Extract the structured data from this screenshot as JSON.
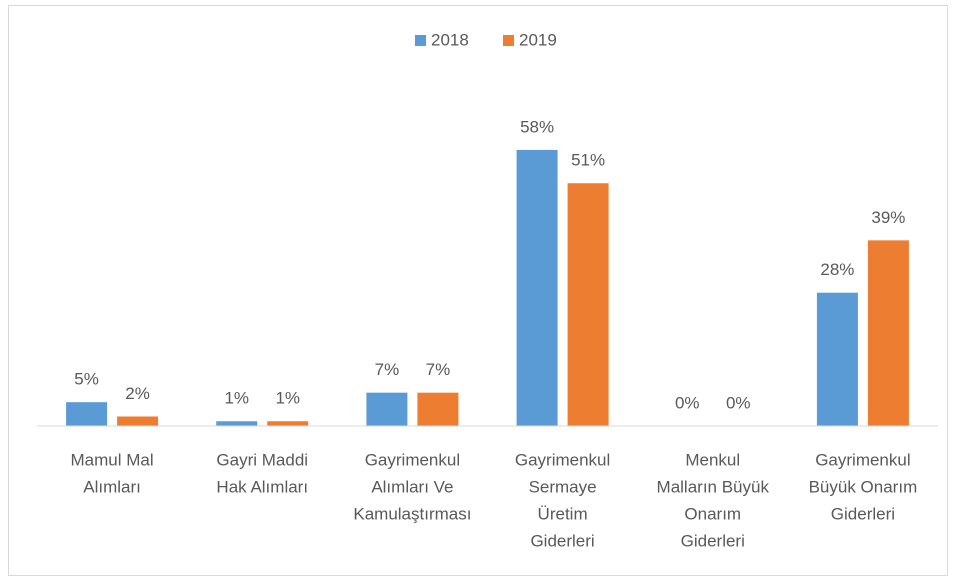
{
  "chart_data": {
    "type": "bar",
    "categories": [
      [
        "Mamul Mal",
        "Alımları"
      ],
      [
        "Gayri Maddi",
        "Hak Alımları"
      ],
      [
        "Gayrimenkul",
        "Alımları Ve",
        "Kamulaştırması"
      ],
      [
        "Gayrimenkul",
        "Sermaye",
        "Üretim",
        "Giderleri"
      ],
      [
        "Menkul",
        "Malların Büyük",
        "Onarım",
        "Giderleri"
      ],
      [
        "Gayrimenkul",
        "Büyük Onarım",
        "Giderleri"
      ]
    ],
    "series": [
      {
        "name": "2018",
        "color": "#5b9bd5",
        "values": [
          5,
          1,
          7,
          58,
          0,
          28
        ],
        "value_labels": [
          "5%",
          "1%",
          "7%",
          "58%",
          "0%",
          "28%"
        ]
      },
      {
        "name": "2019",
        "color": "#ed7d31",
        "values": [
          2,
          1,
          7,
          51,
          0,
          39
        ],
        "value_labels": [
          "2%",
          "1%",
          "7%",
          "51%",
          "0%",
          "39%"
        ]
      }
    ],
    "legend": "top"
  }
}
